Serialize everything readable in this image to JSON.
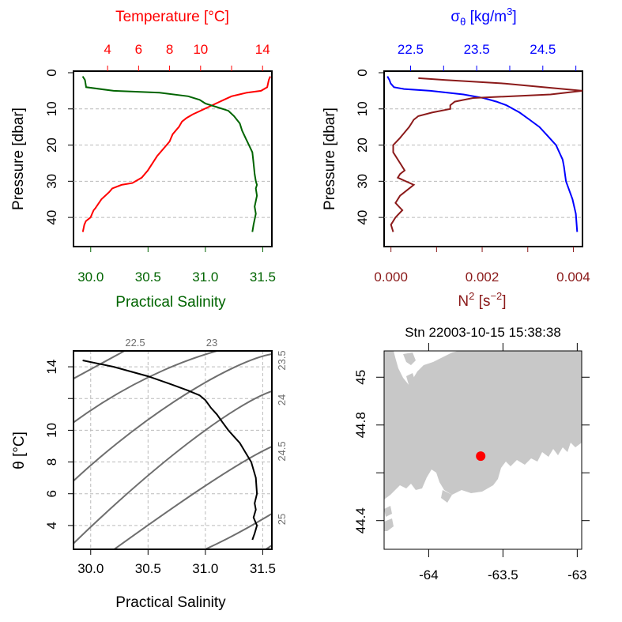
{
  "colors": {
    "temperature": "#ff0000",
    "salinity": "#006400",
    "density": "#0000ff",
    "n2": "#8b1a1a",
    "isopycnal": "#6e6e6e",
    "profile": "#000000",
    "land": "#c8c8c8",
    "station": "#ff0000",
    "grid": "#bbbbbb"
  },
  "panel1": {
    "top_axis_label": "Temperature [°C]",
    "bottom_axis_label": "Practical Salinity",
    "left_axis_label": "Pressure [dbar]",
    "top_ticks": [
      "4",
      "6",
      "8",
      "10",
      "14"
    ],
    "bottom_ticks": [
      "30.0",
      "30.5",
      "31.0",
      "31.5"
    ],
    "left_ticks": [
      "0",
      "10",
      "20",
      "30",
      "40"
    ]
  },
  "panel2": {
    "top_axis_label_main": "σ",
    "top_axis_label_sub": "θ",
    "top_axis_label_rest": " [kg/m",
    "top_axis_label_sup": "3",
    "top_axis_label_end": "]",
    "bottom_axis_label_main": "N",
    "bottom_axis_label_sup": "2",
    "bottom_axis_label_rest": " [s",
    "bottom_axis_label_sup2": "−2",
    "bottom_axis_label_end": "]",
    "left_axis_label": "Pressure [dbar]",
    "top_ticks": [
      "22.5",
      "23.5",
      "24.5"
    ],
    "bottom_ticks": [
      "0.000",
      "0.002",
      "0.004"
    ],
    "left_ticks": [
      "0",
      "10",
      "20",
      "30",
      "40"
    ]
  },
  "panel3": {
    "left_axis_label_main": "θ",
    "left_axis_label_rest": " [°C]",
    "bottom_axis_label": "Practical Salinity",
    "bottom_ticks": [
      "30.0",
      "30.5",
      "31.0",
      "31.5"
    ],
    "left_ticks": [
      "4",
      "6",
      "8",
      "10",
      "14"
    ],
    "isopycnal_labels_top": [
      "22.5",
      "23"
    ],
    "isopycnal_labels_right": [
      "23.5",
      "24",
      "24.5",
      "25"
    ]
  },
  "panel4": {
    "title": "Stn 22003-10-15 15:38:38",
    "bottom_ticks": [
      "-64",
      "-63.5",
      "-63"
    ],
    "left_ticks": [
      "44.4",
      "44.8",
      "45"
    ]
  },
  "chart_data": [
    {
      "type": "line",
      "title": "",
      "xlabel": "Practical Salinity",
      "x2label": "Temperature [°C]",
      "ylabel": "Pressure [dbar]",
      "ylim": [
        45,
        0
      ],
      "series": [
        {
          "axis": "temperature",
          "xlim": [
            1.8,
            14.6
          ],
          "x": [
            14.5,
            14.4,
            14.3,
            13.9,
            13.0,
            12.5,
            12.0,
            11.5,
            11.0,
            10.5,
            10.0,
            9.5,
            9.1,
            8.8,
            8.6,
            8.4,
            8.2,
            8.1,
            8.0,
            7.8,
            7.2,
            6.6,
            6.2,
            5.6,
            4.9,
            4.3,
            4.1,
            3.6,
            3.2,
            3.1,
            3.0,
            2.9,
            2.6,
            2.5,
            2.4
          ],
          "y": [
            1,
            2,
            4,
            5,
            5.5,
            6,
            6.5,
            7.5,
            8.5,
            9.5,
            10.5,
            11.5,
            12.5,
            13.5,
            15,
            16,
            17,
            18,
            19,
            20,
            23,
            27,
            29,
            30.5,
            31,
            32,
            33,
            35,
            37.5,
            38,
            39,
            40,
            41,
            42,
            44
          ]
        },
        {
          "axis": "salinity",
          "xlim": [
            29.85,
            31.58
          ],
          "x": [
            29.93,
            29.95,
            29.96,
            30.2,
            30.6,
            30.85,
            30.95,
            31.0,
            31.1,
            31.2,
            31.25,
            31.3,
            31.32,
            31.35,
            31.38,
            31.41,
            31.42,
            31.43,
            31.44,
            31.45,
            31.44,
            31.45,
            31.43,
            31.44,
            31.42,
            31.41
          ],
          "y": [
            1,
            2,
            4,
            5,
            5.5,
            6.5,
            7.5,
            8.5,
            9.5,
            10.5,
            12,
            14,
            16,
            18,
            20,
            22,
            25,
            28,
            30,
            31,
            32,
            34,
            37,
            39,
            42,
            44
          ]
        }
      ]
    },
    {
      "type": "line",
      "title": "",
      "xlabel": "N2 [s-2]",
      "x2label": "sigma-theta [kg/m3]",
      "ylabel": "Pressure [dbar]",
      "ylim": [
        45,
        0
      ],
      "series": [
        {
          "axis": "density",
          "xlim": [
            22.1,
            25.1
          ],
          "x": [
            22.15,
            22.18,
            22.2,
            22.25,
            22.4,
            22.8,
            23.3,
            23.6,
            23.8,
            23.95,
            24.05,
            24.15,
            24.3,
            24.45,
            24.55,
            24.6,
            24.7,
            24.8,
            24.82,
            24.85,
            24.95,
            25.0,
            25.02
          ],
          "y": [
            1,
            2,
            3,
            4,
            4.5,
            5,
            6,
            7,
            8,
            9,
            10,
            11,
            13,
            15,
            17,
            18,
            20,
            24,
            26,
            30,
            35,
            39,
            44
          ]
        },
        {
          "axis": "n2",
          "xlim": [
            -0.00015,
            0.0042
          ],
          "x": [
            0.0006,
            0.0012,
            0.0025,
            0.0042,
            0.0035,
            0.0018,
            0.0014,
            0.0013,
            0.0013,
            0.0009,
            0.0006,
            0.0005,
            0.00045,
            0.0004,
            0.0002,
            5e-05,
            5e-05,
            0.0002,
            0.0003,
            0.0002,
            0.00015,
            0.0005,
            0.0002,
            0.0001,
            0.00025,
            0.0001,
            0.0,
            5e-05
          ],
          "y": [
            1.5,
            2,
            3,
            5,
            6,
            7,
            8,
            9,
            10,
            11,
            12,
            13,
            14,
            15,
            18,
            20,
            22,
            25,
            27,
            28,
            29,
            31,
            34,
            36,
            38,
            40,
            42,
            44
          ]
        }
      ]
    },
    {
      "type": "line",
      "title": "",
      "xlabel": "Practical Salinity",
      "ylabel": "θ [°C]",
      "xlim": [
        29.85,
        31.58
      ],
      "ylim": [
        2.5,
        15
      ],
      "series": [
        {
          "name": "",
          "x": [
            29.93,
            30.2,
            30.5,
            30.7,
            30.85,
            30.95,
            31.0,
            31.05,
            31.1,
            31.15,
            31.2,
            31.25,
            31.3,
            31.35,
            31.4,
            31.42,
            31.44,
            31.45,
            31.43,
            31.44,
            31.42,
            31.45,
            31.43,
            31.41
          ],
          "y": [
            14.4,
            14.0,
            13.4,
            12.9,
            12.5,
            12.2,
            11.9,
            11.4,
            11.0,
            10.5,
            10.0,
            9.6,
            9.2,
            8.6,
            8.0,
            7.5,
            7.0,
            6.0,
            5.4,
            5.0,
            4.5,
            4.0,
            3.5,
            3.1
          ]
        }
      ],
      "isopycnals": [
        "22.5",
        "23",
        "23.5",
        "24",
        "24.5",
        "25"
      ]
    },
    {
      "type": "map",
      "title": "Stn 22003-10-15 15:38:38",
      "xlim": [
        -64.3,
        -62.97
      ],
      "ylim": [
        44.28,
        45.11
      ],
      "station": {
        "lon": -63.65,
        "lat": 44.67
      }
    }
  ]
}
